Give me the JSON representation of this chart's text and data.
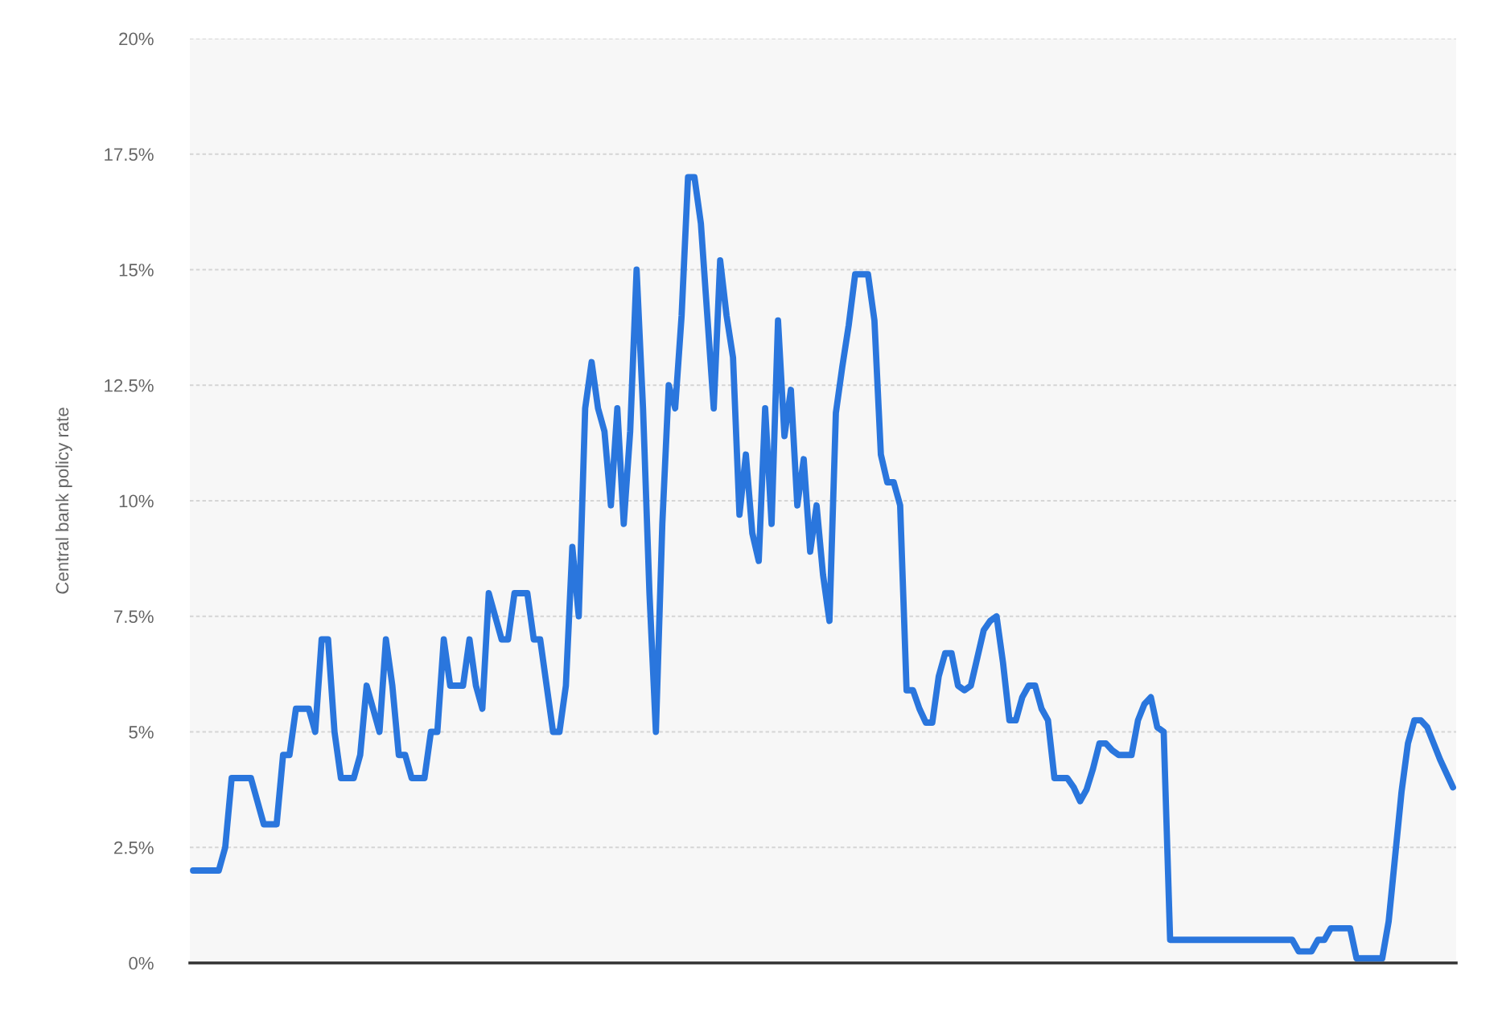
{
  "chart_data": {
    "type": "line",
    "ylabel": "Central bank policy rate",
    "categories": [
      null,
      null,
      null,
      null,
      null,
      null,
      null,
      null,
      null,
      null,
      null,
      null,
      null,
      null,
      null,
      null,
      null,
      null,
      null,
      null,
      null,
      null,
      null,
      null,
      null,
      null,
      null,
      null,
      null,
      null,
      null,
      null,
      null,
      null,
      null,
      null,
      null,
      null,
      null,
      null,
      null,
      null,
      null,
      null,
      null,
      null,
      null,
      null,
      null,
      null,
      null,
      null,
      null,
      null,
      null,
      null,
      null,
      null,
      null,
      null,
      null,
      null,
      null,
      null,
      null,
      null,
      null,
      null,
      null,
      null,
      null,
      null,
      null,
      null,
      null,
      null,
      null,
      null,
      null,
      null,
      null,
      null,
      null,
      null,
      null,
      null,
      null,
      null,
      null,
      null,
      null,
      null,
      null,
      null,
      null,
      null,
      null,
      null,
      null,
      null,
      null,
      null,
      null,
      null,
      null,
      null,
      null,
      null,
      null,
      null,
      null,
      null,
      null,
      null,
      null,
      null,
      null,
      null,
      null,
      null,
      null,
      null,
      null,
      null,
      null,
      null,
      null,
      null,
      null,
      null,
      null,
      null,
      null,
      null,
      null,
      null,
      null,
      null,
      null,
      null,
      null,
      null,
      null,
      null,
      null,
      null,
      null,
      null,
      null,
      null,
      null,
      null,
      null,
      null,
      null,
      null,
      null,
      null,
      null,
      null,
      null,
      null,
      null,
      null,
      null,
      null,
      null,
      null,
      null,
      null,
      null,
      null,
      null,
      null,
      null,
      null,
      null,
      null,
      null,
      null,
      null,
      null,
      null,
      null,
      null,
      null,
      null,
      null,
      null,
      null,
      null,
      null,
      null,
      null,
      null,
      null,
      null
    ],
    "values": [
      2.0,
      2.0,
      2.0,
      2.0,
      2.0,
      2.5,
      4.0,
      4.0,
      4.0,
      4.0,
      3.5,
      3.0,
      3.0,
      3.0,
      4.5,
      4.5,
      5.5,
      5.5,
      5.5,
      5.0,
      7.0,
      7.0,
      5.0,
      4.0,
      4.0,
      4.0,
      4.5,
      6.0,
      5.5,
      5.0,
      7.0,
      6.0,
      4.5,
      4.5,
      4.0,
      4.0,
      4.0,
      5.0,
      5.0,
      7.0,
      6.0,
      6.0,
      6.0,
      7.0,
      6.0,
      5.5,
      8.0,
      7.5,
      7.0,
      7.0,
      8.0,
      8.0,
      8.0,
      7.0,
      7.0,
      6.0,
      5.0,
      5.0,
      6.0,
      9.0,
      7.5,
      12.0,
      13.0,
      12.0,
      11.5,
      9.9,
      12.0,
      9.5,
      11.5,
      15.0,
      12.0,
      8.0,
      5.0,
      9.5,
      12.5,
      12.0,
      14.0,
      17.0,
      17.0,
      16.0,
      14.0,
      12.0,
      15.2,
      14.0,
      13.1,
      9.7,
      11.0,
      9.3,
      8.7,
      12.0,
      9.5,
      13.9,
      11.4,
      12.4,
      9.9,
      10.9,
      8.9,
      9.9,
      8.4,
      7.4,
      11.9,
      12.9,
      13.8,
      14.9,
      14.9,
      14.9,
      13.9,
      11.0,
      10.4,
      10.4,
      9.9,
      5.9,
      5.9,
      5.5,
      5.2,
      5.2,
      6.2,
      6.7,
      6.7,
      6.0,
      5.9,
      6.0,
      6.6,
      7.2,
      7.4,
      7.5,
      6.5,
      5.25,
      5.25,
      5.75,
      6.0,
      6.0,
      5.5,
      5.25,
      4.0,
      4.0,
      4.0,
      3.8,
      3.5,
      3.75,
      4.2,
      4.75,
      4.75,
      4.6,
      4.5,
      4.5,
      4.5,
      5.25,
      5.6,
      5.75,
      5.1,
      5.0,
      0.5,
      0.5,
      0.5,
      0.5,
      0.5,
      0.5,
      0.5,
      0.5,
      0.5,
      0.5,
      0.5,
      0.5,
      0.5,
      0.5,
      0.5,
      0.5,
      0.5,
      0.5,
      0.5,
      0.5,
      0.25,
      0.25,
      0.25,
      0.5,
      0.5,
      0.75,
      0.75,
      0.75,
      0.75,
      0.1,
      0.1,
      0.1,
      0.1,
      0.1,
      0.9,
      2.3,
      3.7,
      4.75,
      5.25,
      5.25,
      5.1,
      4.75,
      4.4,
      4.1,
      3.8
    ],
    "color": "#2a76dd",
    "ylim": [
      0,
      20
    ],
    "yticks": [
      {
        "value": 0,
        "label": "0%"
      },
      {
        "value": 2.5,
        "label": "2.5%"
      },
      {
        "value": 5,
        "label": "5%"
      },
      {
        "value": 7.5,
        "label": "7.5%"
      },
      {
        "value": 10,
        "label": "10%"
      },
      {
        "value": 12.5,
        "label": "12.5%"
      },
      {
        "value": 15,
        "label": "15%"
      },
      {
        "value": 17.5,
        "label": "17.5%"
      },
      {
        "value": 20,
        "label": "20%"
      }
    ],
    "grid": "y"
  }
}
